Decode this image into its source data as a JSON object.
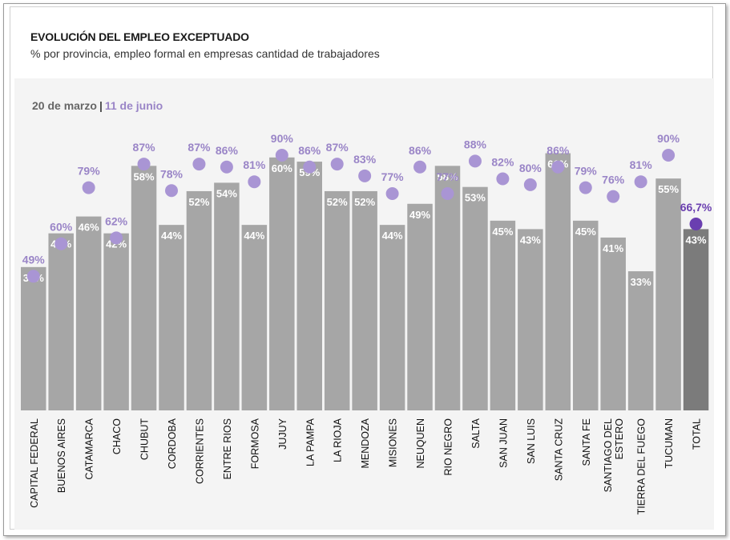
{
  "header": {
    "title": "EVOLUCIÓN DEL EMPLEO EXCEPTUADO",
    "subtitle": "% por provincia, empleo formal en empresas cantidad de trabajadores"
  },
  "legend": {
    "period1": "20 de marzo",
    "separator": "|",
    "period2": "11 de junio"
  },
  "chart_data": {
    "type": "bar",
    "title": "EVOLUCIÓN DEL EMPLEO EXCEPTUADO",
    "subtitle": "% por provincia, empleo formal en empresas cantidad de trabajadores",
    "categories": [
      "CAPITAL FEDERAL",
      "BUENOS AIRES",
      "CATAMARCA",
      "CHACO",
      "CHUBUT",
      "CORDOBA",
      "CORRIENTES",
      "ENTRE RIOS",
      "FORMOSA",
      "JUJUY",
      "LA PAMPA",
      "LA RIOJA",
      "MENDOZA",
      "MISIONES",
      "NEUQUEN",
      "RIO NEGRO",
      "SALTA",
      "SAN JUAN",
      "SAN LUIS",
      "SANTA CRUZ",
      "SANTA FE",
      "SANTIAGO DEL ESTERO",
      "TIERRA DEL FUEGO",
      "TUCUMAN",
      "TOTAL"
    ],
    "series": [
      {
        "name": "20 de marzo",
        "mark": "bar",
        "values": [
          34,
          42,
          46,
          42,
          58,
          44,
          52,
          54,
          44,
          60,
          59,
          52,
          52,
          44,
          49,
          58,
          53,
          45,
          43,
          61,
          45,
          41,
          33,
          55,
          43
        ],
        "labels": [
          "34%",
          "42%",
          "46%",
          "42%",
          "58%",
          "44%",
          "52%",
          "54%",
          "44%",
          "60%",
          "59%",
          "52%",
          "52%",
          "44%",
          "49%",
          "58%",
          "53%",
          "45%",
          "43%",
          "61%",
          "45%",
          "41%",
          "33%",
          "55%",
          "43%"
        ]
      },
      {
        "name": "11 de junio",
        "mark": "dot",
        "values": [
          49,
          60,
          79,
          62,
          87,
          78,
          87,
          86,
          81,
          90,
          86,
          87,
          83,
          77,
          86,
          77,
          88,
          82,
          80,
          86,
          79,
          76,
          81,
          90,
          66.7
        ],
        "labels": [
          "49%",
          "60%",
          "79%",
          "62%",
          "87%",
          "78%",
          "87%",
          "86%",
          "81%",
          "90%",
          "86%",
          "87%",
          "83%",
          "77%",
          "86%",
          "77%",
          "88%",
          "82%",
          "80%",
          "86%",
          "79%",
          "76%",
          "81%",
          "90%",
          "66,7%"
        ]
      }
    ],
    "ylim": [
      0,
      100
    ],
    "grid": false,
    "colors": {
      "bar": "#a6a6a6",
      "bar_total": "#7b7b7b",
      "dot": "#a995d4",
      "dot_total": "#6a3fb0",
      "dot_label": "#9a85c7",
      "dot_label_total": "#6a3fb0",
      "bar_label": "#ffffff",
      "plot_background": "#f4f4f4"
    }
  }
}
